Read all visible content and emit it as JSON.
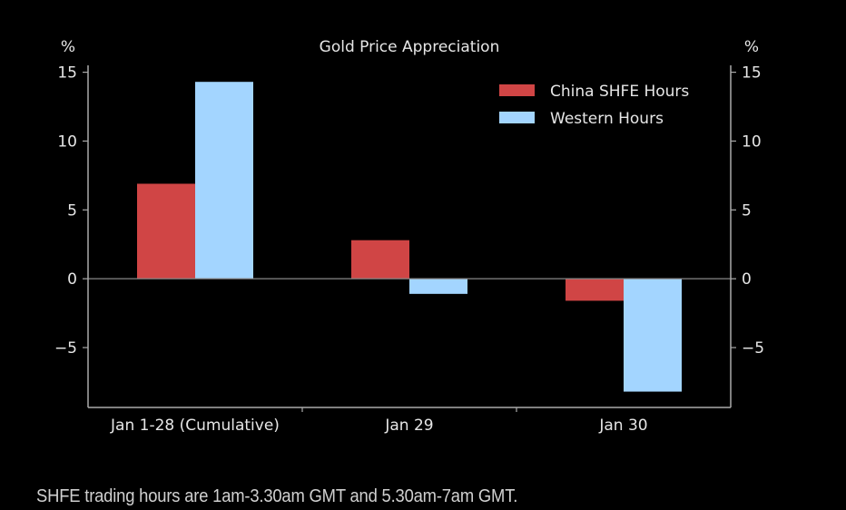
{
  "chart_data": {
    "type": "bar",
    "title": "Gold Price Appreciation",
    "xlabel": "",
    "ylabel_left": "%",
    "ylabel_right": "%",
    "categories": [
      "Jan 1-28 (Cumulative)",
      "Jan 29",
      "Jan 30"
    ],
    "series": [
      {
        "name": "China SHFE Hours",
        "color": "#d04545",
        "values": [
          6.9,
          2.8,
          -1.6
        ]
      },
      {
        "name": "Western Hours",
        "color": "#a3d5ff",
        "values": [
          14.3,
          -1.1,
          -8.2
        ]
      }
    ],
    "ylim": [
      -9.35,
      15.5
    ],
    "yticks": [
      15,
      10,
      5,
      0,
      -5
    ],
    "ytick_labels": [
      "15",
      "10",
      "5",
      "0",
      "−5"
    ],
    "legend": "top-right",
    "grid": false,
    "zero_line": true,
    "background": "#000000",
    "axis_color": "#aaaaaa",
    "text_color": "#e6e6e6"
  },
  "caption": "SHFE trading hours are 1am-3.30am GMT and 5.30am-7am GMT."
}
